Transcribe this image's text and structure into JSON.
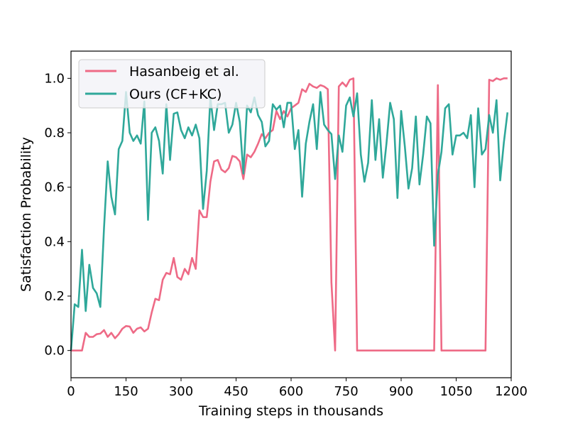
{
  "chart_data": {
    "type": "line",
    "xlabel": "Training steps in thousands",
    "ylabel": "Satisfaction Probability",
    "xlim": [
      0,
      1200
    ],
    "ylim": [
      -0.1,
      1.1
    ],
    "xticks": [
      0,
      150,
      300,
      450,
      600,
      750,
      900,
      1050,
      1200
    ],
    "yticks": [
      0.0,
      0.2,
      0.4,
      0.6,
      0.8,
      1.0
    ],
    "xtick_labels": [
      "0",
      "150",
      "300",
      "450",
      "600",
      "750",
      "900",
      "1050",
      "1200"
    ],
    "ytick_labels": [
      "0.0",
      "0.2",
      "0.4",
      "0.6",
      "0.8",
      "1.0"
    ],
    "grid": false,
    "legend_position": "top-left",
    "series": [
      {
        "name": "Hasanbeig et al.",
        "color": "#ee6a86",
        "x": [
          0,
          10,
          20,
          30,
          40,
          50,
          60,
          70,
          80,
          90,
          100,
          110,
          120,
          130,
          140,
          150,
          160,
          170,
          180,
          190,
          200,
          210,
          220,
          230,
          240,
          250,
          260,
          270,
          280,
          290,
          300,
          310,
          320,
          330,
          340,
          350,
          360,
          370,
          380,
          390,
          400,
          410,
          420,
          430,
          440,
          450,
          460,
          470,
          480,
          490,
          500,
          510,
          520,
          530,
          540,
          550,
          560,
          570,
          580,
          590,
          600,
          610,
          620,
          630,
          640,
          650,
          660,
          670,
          680,
          690,
          700,
          710,
          720,
          730,
          740,
          750,
          760,
          770,
          780,
          790,
          990,
          1000,
          1010,
          1130,
          1140,
          1150,
          1160,
          1170,
          1180,
          1190
        ],
        "y": [
          0.0,
          0.0,
          0.0,
          0.0,
          0.065,
          0.05,
          0.05,
          0.06,
          0.062,
          0.075,
          0.05,
          0.065,
          0.045,
          0.06,
          0.08,
          0.09,
          0.088,
          0.065,
          0.08,
          0.085,
          0.07,
          0.08,
          0.14,
          0.19,
          0.185,
          0.26,
          0.285,
          0.28,
          0.34,
          0.27,
          0.26,
          0.3,
          0.28,
          0.34,
          0.3,
          0.515,
          0.49,
          0.49,
          0.62,
          0.695,
          0.7,
          0.665,
          0.655,
          0.67,
          0.715,
          0.71,
          0.695,
          0.63,
          0.72,
          0.71,
          0.73,
          0.76,
          0.795,
          0.78,
          0.8,
          0.81,
          0.88,
          0.85,
          0.88,
          0.86,
          0.89,
          0.9,
          0.91,
          0.96,
          0.95,
          0.98,
          0.97,
          0.965,
          0.975,
          0.97,
          0.96,
          0.25,
          0.0,
          0.97,
          0.985,
          0.97,
          0.995,
          1.0,
          0.0,
          0.0,
          0.0,
          0.975,
          0.0,
          0.0,
          0.995,
          0.99,
          1.0,
          0.995,
          1.0,
          1.0
        ]
      },
      {
        "name": "Ours (CF+KC)",
        "color": "#2fa89a",
        "x": [
          0,
          10,
          20,
          30,
          40,
          50,
          60,
          70,
          80,
          90,
          100,
          110,
          120,
          130,
          140,
          150,
          160,
          170,
          180,
          190,
          200,
          210,
          220,
          230,
          240,
          250,
          260,
          270,
          280,
          290,
          300,
          310,
          320,
          330,
          340,
          350,
          360,
          370,
          380,
          390,
          400,
          410,
          420,
          430,
          440,
          450,
          460,
          470,
          480,
          490,
          500,
          510,
          520,
          530,
          540,
          550,
          560,
          570,
          580,
          590,
          600,
          610,
          620,
          630,
          640,
          650,
          660,
          670,
          680,
          690,
          700,
          710,
          720,
          730,
          740,
          750,
          760,
          770,
          780,
          790,
          800,
          810,
          820,
          830,
          840,
          850,
          860,
          870,
          880,
          890,
          900,
          910,
          920,
          930,
          940,
          950,
          960,
          970,
          980,
          990,
          1000,
          1010,
          1020,
          1030,
          1040,
          1050,
          1060,
          1070,
          1080,
          1090,
          1100,
          1110,
          1120,
          1130,
          1140,
          1150,
          1160,
          1170,
          1180,
          1190
        ],
        "y": [
          0.0,
          0.17,
          0.16,
          0.37,
          0.145,
          0.315,
          0.23,
          0.21,
          0.16,
          0.45,
          0.695,
          0.565,
          0.5,
          0.74,
          0.77,
          0.95,
          0.8,
          0.77,
          0.79,
          0.76,
          0.915,
          0.48,
          0.8,
          0.82,
          0.77,
          0.65,
          0.905,
          0.7,
          0.87,
          0.875,
          0.81,
          0.78,
          0.82,
          0.79,
          0.83,
          0.78,
          0.52,
          0.66,
          0.93,
          0.81,
          0.905,
          0.905,
          0.91,
          0.8,
          0.83,
          0.91,
          0.84,
          0.65,
          0.9,
          0.875,
          0.93,
          0.865,
          0.84,
          0.75,
          0.77,
          0.905,
          0.885,
          0.9,
          0.82,
          0.91,
          0.91,
          0.74,
          0.81,
          0.565,
          0.76,
          0.84,
          0.905,
          0.74,
          0.95,
          0.83,
          0.81,
          0.795,
          0.63,
          0.79,
          0.73,
          0.9,
          0.93,
          0.86,
          0.945,
          0.72,
          0.62,
          0.69,
          0.92,
          0.7,
          0.85,
          0.635,
          0.76,
          0.91,
          0.85,
          0.56,
          0.88,
          0.75,
          0.595,
          0.67,
          0.86,
          0.61,
          0.72,
          0.86,
          0.835,
          0.385,
          0.645,
          0.73,
          0.89,
          0.905,
          0.72,
          0.79,
          0.79,
          0.8,
          0.78,
          0.865,
          0.6,
          0.89,
          0.72,
          0.74,
          0.865,
          0.8,
          0.92,
          0.625,
          0.765,
          0.875
        ]
      }
    ]
  }
}
